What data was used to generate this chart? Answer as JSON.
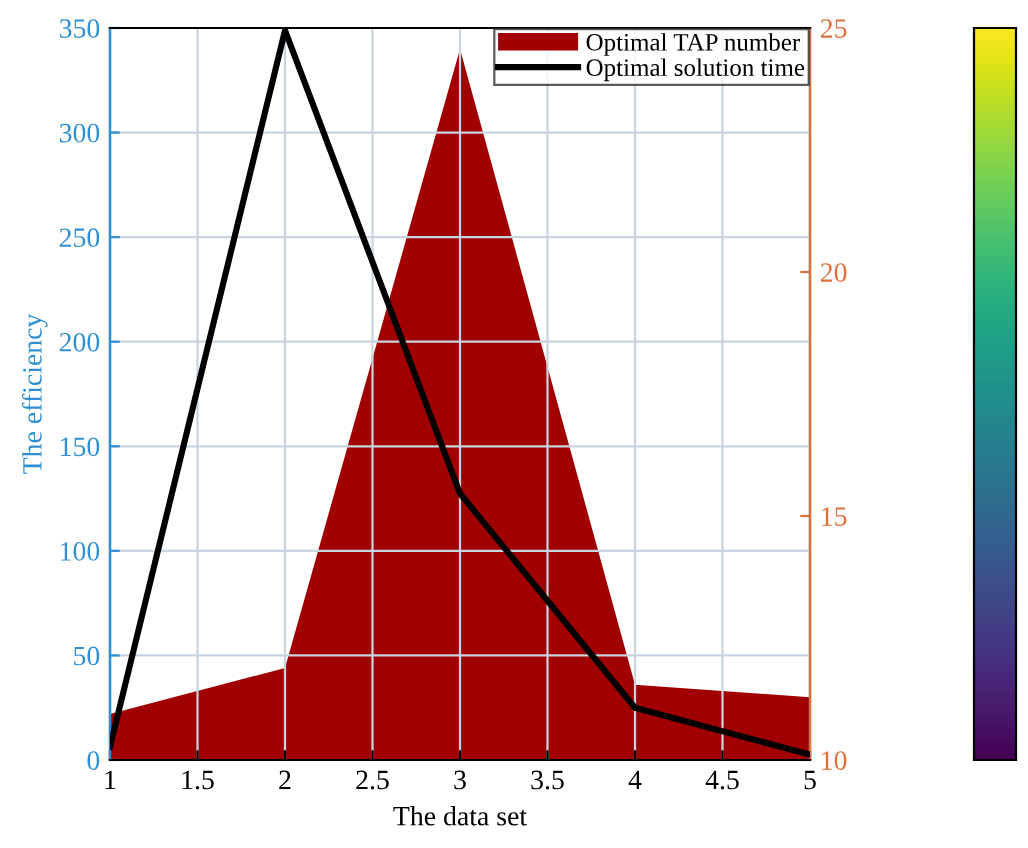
{
  "chart_data": {
    "type": "area",
    "xlabel": "The data set",
    "ylabel": "The efficiency",
    "x": [
      1,
      2,
      3,
      4,
      5
    ],
    "series": [
      {
        "name": "Optimal TAP number",
        "color": "#a00000",
        "values": [
          22,
          44,
          340,
          36,
          30
        ]
      },
      {
        "name": "Optimal solution time",
        "type": "line",
        "color": "#000000",
        "axis": "y2",
        "values": [
          10.27,
          24.95,
          15.46,
          11.07,
          10.11
        ]
      }
    ],
    "xlim": [
      1,
      5
    ],
    "xticks": [
      1,
      1.5,
      2,
      2.5,
      3,
      3.5,
      4,
      4.5,
      5
    ],
    "ylim": [
      0,
      350
    ],
    "yticks": [
      0,
      50,
      100,
      150,
      200,
      250,
      300,
      350
    ],
    "y2lim": [
      10,
      25
    ],
    "y2ticks": [
      10,
      15,
      20,
      25
    ],
    "grid": true,
    "legend": "top right"
  }
}
